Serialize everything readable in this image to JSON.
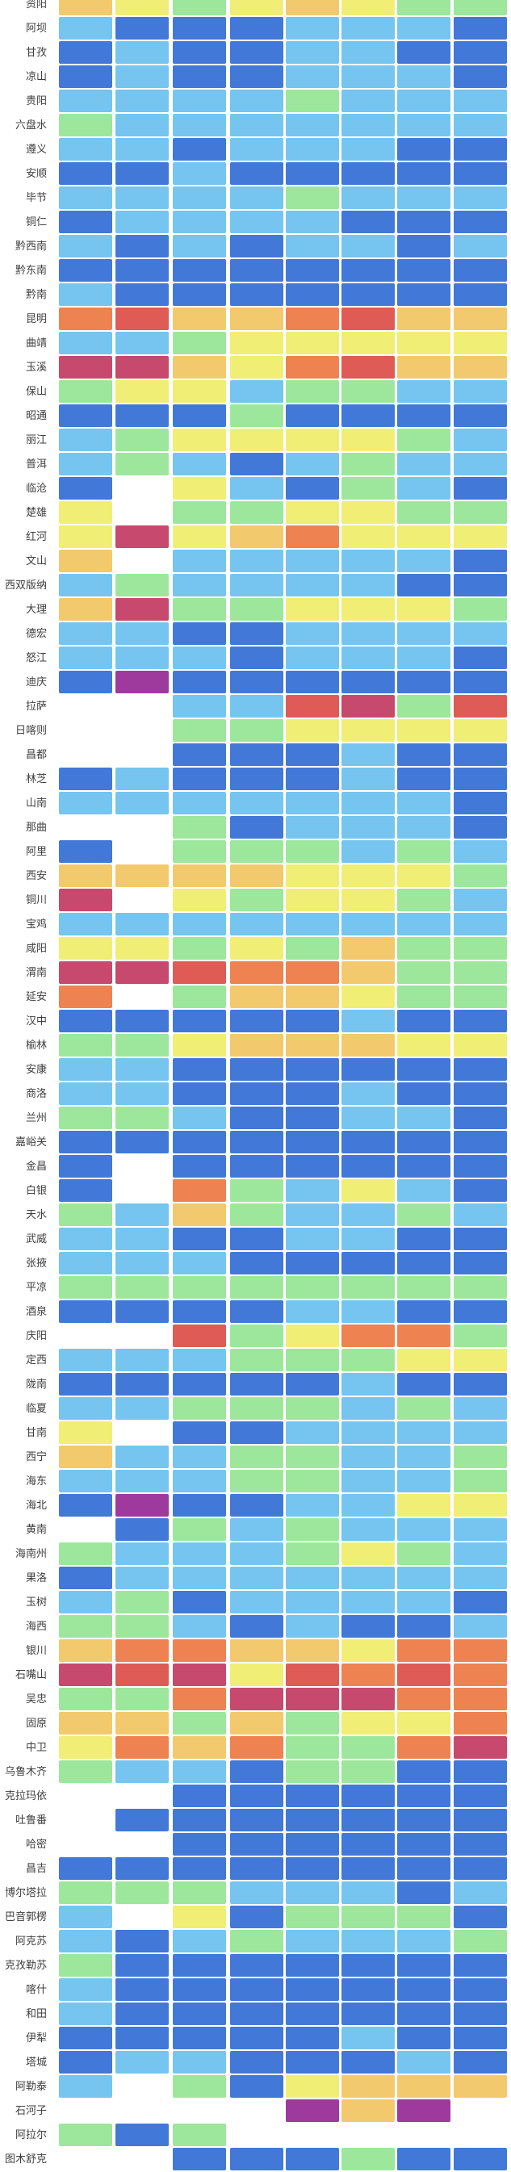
{
  "chart_data": {
    "type": "heatmap",
    "title": "",
    "x_axis": {
      "tick_labels_visible": false,
      "n_cols": 8
    },
    "legend": "none",
    "first_row_clipped_at_top": true,
    "palette": {
      "D": {
        "name": "dark-blue",
        "hex": "#4278d8"
      },
      "S": {
        "name": "sky-blue",
        "hex": "#75c5f0"
      },
      "G": {
        "name": "green",
        "hex": "#9de79c"
      },
      "Y": {
        "name": "yellow",
        "hex": "#f0ee74"
      },
      "A": {
        "name": "amber",
        "hex": "#f3c96d"
      },
      "O": {
        "name": "orange",
        "hex": "#ee8251"
      },
      "R": {
        "name": "red",
        "hex": "#de5b56"
      },
      "C": {
        "name": "crimson",
        "hex": "#c7496e"
      },
      "P": {
        "name": "purple",
        "hex": "#9e3a9e"
      },
      "W": {
        "name": "empty",
        "hex": "#ffffff"
      }
    },
    "rows": [
      {
        "label": "资阳",
        "cells": "AYGYAYGG"
      },
      {
        "label": "阿坝",
        "cells": "SDDDSSSD"
      },
      {
        "label": "甘孜",
        "cells": "DSDDSSDD"
      },
      {
        "label": "凉山",
        "cells": "DSDDSSSD"
      },
      {
        "label": "贵阳",
        "cells": "SSSSGSSS"
      },
      {
        "label": "六盘水",
        "cells": "GSSSSSSS"
      },
      {
        "label": "遵义",
        "cells": "SSDSSSDD"
      },
      {
        "label": "安顺",
        "cells": "DDSDDDDD"
      },
      {
        "label": "毕节",
        "cells": "SSSSGSSS"
      },
      {
        "label": "铜仁",
        "cells": "DSSSSDDD"
      },
      {
        "label": "黔西南",
        "cells": "SDSDSSDS"
      },
      {
        "label": "黔东南",
        "cells": "DDDDDDDD"
      },
      {
        "label": "黔南",
        "cells": "SDDDDDDD"
      },
      {
        "label": "昆明",
        "cells": "ORAAORAA"
      },
      {
        "label": "曲靖",
        "cells": "SSGYYYYY"
      },
      {
        "label": "玉溪",
        "cells": "CCAYORAA"
      },
      {
        "label": "保山",
        "cells": "GYYSGGSS"
      },
      {
        "label": "昭通",
        "cells": "DDDGDDDD"
      },
      {
        "label": "丽江",
        "cells": "SGYYYYGS"
      },
      {
        "label": "普洱",
        "cells": "SGSDSGSS"
      },
      {
        "label": "临沧",
        "cells": "DWYSDGSD"
      },
      {
        "label": "楚雄",
        "cells": "YWGGYYGG"
      },
      {
        "label": "红河",
        "cells": "YCYAOYYY"
      },
      {
        "label": "文山",
        "cells": "AWSSSSSD"
      },
      {
        "label": "西双版纳",
        "cells": "SGSSSSDD"
      },
      {
        "label": "大理",
        "cells": "ACGGYYYG"
      },
      {
        "label": "德宏",
        "cells": "SSDDSSSS"
      },
      {
        "label": "怒江",
        "cells": "SSSDSSSD"
      },
      {
        "label": "迪庆",
        "cells": "DPDDDDDD"
      },
      {
        "label": "拉萨",
        "cells": "WWSSRCGR"
      },
      {
        "label": "日喀则",
        "cells": "WWGGYYYY"
      },
      {
        "label": "昌都",
        "cells": "WWDDDSDD"
      },
      {
        "label": "林芝",
        "cells": "DSDDDSDD"
      },
      {
        "label": "山南",
        "cells": "SSSSSSSD"
      },
      {
        "label": "那曲",
        "cells": "WWGDSSSD"
      },
      {
        "label": "阿里",
        "cells": "DWGGGSGS"
      },
      {
        "label": "西安",
        "cells": "AAAAYYYG"
      },
      {
        "label": "铜川",
        "cells": "CWYGYYGS"
      },
      {
        "label": "宝鸡",
        "cells": "SSSSSSSS"
      },
      {
        "label": "咸阳",
        "cells": "YYGYGAGG"
      },
      {
        "label": "渭南",
        "cells": "CCROOAGG"
      },
      {
        "label": "延安",
        "cells": "OWGAAYGG"
      },
      {
        "label": "汉中",
        "cells": "DDDDDSDD"
      },
      {
        "label": "榆林",
        "cells": "GGYAAAYY"
      },
      {
        "label": "安康",
        "cells": "SSDDDDDD"
      },
      {
        "label": "商洛",
        "cells": "SSDDDSDD"
      },
      {
        "label": "兰州",
        "cells": "GGSDDSSD"
      },
      {
        "label": "嘉峪关",
        "cells": "DDDDDDDD"
      },
      {
        "label": "金昌",
        "cells": "DWDDDDDD"
      },
      {
        "label": "白银",
        "cells": "DWOGSYSD"
      },
      {
        "label": "天水",
        "cells": "GSAGSSGS"
      },
      {
        "label": "武威",
        "cells": "SSDDSSDD"
      },
      {
        "label": "张掖",
        "cells": "SSSDDDDD"
      },
      {
        "label": "平凉",
        "cells": "GGGGGGGG"
      },
      {
        "label": "酒泉",
        "cells": "DDDDSSDD"
      },
      {
        "label": "庆阳",
        "cells": "WWRGYOOG"
      },
      {
        "label": "定西",
        "cells": "SSSGGGYY"
      },
      {
        "label": "陇南",
        "cells": "DDDDDSDD"
      },
      {
        "label": "临夏",
        "cells": "SSGGGSGS"
      },
      {
        "label": "甘南",
        "cells": "YWDDSSSS"
      },
      {
        "label": "西宁",
        "cells": "ASSGGSSG"
      },
      {
        "label": "海东",
        "cells": "SSSGGSSG"
      },
      {
        "label": "海北",
        "cells": "DPDDSSYY"
      },
      {
        "label": "黄南",
        "cells": "WDGSGSSS"
      },
      {
        "label": "海南州",
        "cells": "GSSSGYGS"
      },
      {
        "label": "果洛",
        "cells": "DSSSSSSS"
      },
      {
        "label": "玉树",
        "cells": "SGDSSSSD"
      },
      {
        "label": "海西",
        "cells": "GGSDSDDS"
      },
      {
        "label": "银川",
        "cells": "AOOAAYOO"
      },
      {
        "label": "石嘴山",
        "cells": "CRCYRORO"
      },
      {
        "label": "吴忠",
        "cells": "GGOCCCOO"
      },
      {
        "label": "固原",
        "cells": "AAGAGYYO"
      },
      {
        "label": "中卫",
        "cells": "YOAOGGOC"
      },
      {
        "label": "乌鲁木齐",
        "cells": "GSSDGGDD"
      },
      {
        "label": "克拉玛依",
        "cells": "WWDDDDDD"
      },
      {
        "label": "吐鲁番",
        "cells": "WDDDDDDD"
      },
      {
        "label": "哈密",
        "cells": "WWDDDDDD"
      },
      {
        "label": "昌吉",
        "cells": "DDDDDDDD"
      },
      {
        "label": "博尔塔拉",
        "cells": "GGGSSSDS"
      },
      {
        "label": "巴音郭楞",
        "cells": "SWYDGGGD"
      },
      {
        "label": "阿克苏",
        "cells": "SDSGSSSG"
      },
      {
        "label": "克孜勒苏",
        "cells": "GDDDDDDD"
      },
      {
        "label": "喀什",
        "cells": "SDDDDDDD"
      },
      {
        "label": "和田",
        "cells": "SDDDDDDD"
      },
      {
        "label": "伊犁",
        "cells": "DDDDDSDD"
      },
      {
        "label": "塔城",
        "cells": "DSSDDDSD"
      },
      {
        "label": "阿勒泰",
        "cells": "SWGDYAAA"
      },
      {
        "label": "石河子",
        "cells": "WWWWPAPW"
      },
      {
        "label": "阿拉尔",
        "cells": "GDGWWWWW"
      },
      {
        "label": "图木舒克",
        "cells": "WWDDDGDD"
      }
    ]
  },
  "background": "#ffffff",
  "label_text_color": "#3f3f3f"
}
